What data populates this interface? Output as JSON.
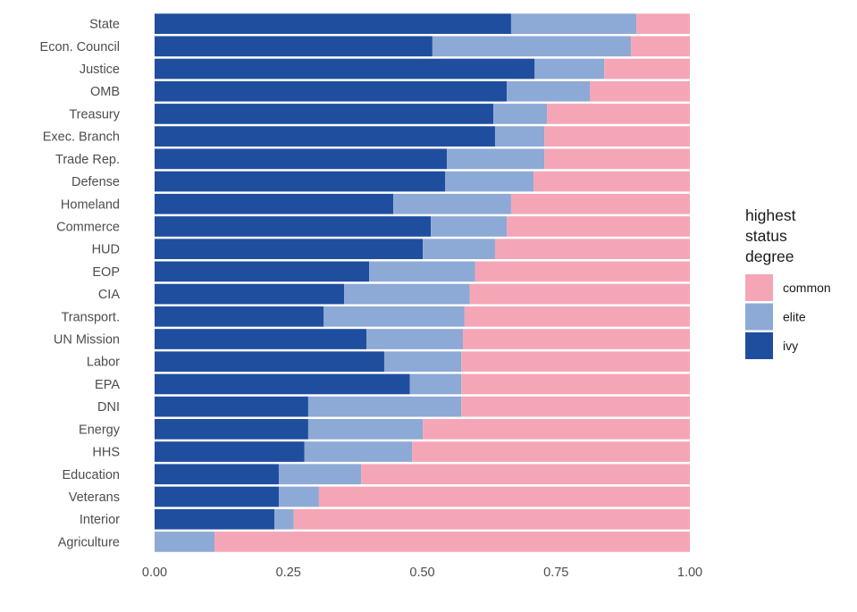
{
  "chart_data": {
    "type": "bar",
    "orientation": "horizontal",
    "stacked": true,
    "normalized": true,
    "title": "",
    "xlabel": "",
    "ylabel": "",
    "xlim": [
      0,
      1
    ],
    "xticks": [
      "0.00",
      "0.25",
      "0.50",
      "0.75",
      "1.00"
    ],
    "xtick_values": [
      0,
      0.25,
      0.5,
      0.75,
      1.0
    ],
    "grid": false,
    "legend": {
      "title": [
        "highest",
        "status",
        "degree"
      ],
      "position": "right",
      "entries": [
        {
          "name": "common",
          "color": "#F4A6B7"
        },
        {
          "name": "elite",
          "color": "#8DA9D6"
        },
        {
          "name": "ivy",
          "color": "#1F4E9E"
        }
      ]
    },
    "categories": [
      "State",
      "Econ. Council",
      "Justice",
      "OMB",
      "Treasury",
      "Exec. Branch",
      "Trade Rep.",
      "Defense",
      "Homeland",
      "Commerce",
      "HUD",
      "EOP",
      "CIA",
      "Transport.",
      "UN Mission",
      "Labor",
      "EPA",
      "DNI",
      "Energy",
      "HHS",
      "Education",
      "Veterans",
      "Interior",
      "Agriculture"
    ],
    "series": [
      {
        "name": "ivy",
        "color": "#1F4E9E",
        "values": [
          0.666,
          0.519,
          0.71,
          0.658,
          0.633,
          0.636,
          0.546,
          0.543,
          0.446,
          0.516,
          0.501,
          0.401,
          0.354,
          0.316,
          0.396,
          0.429,
          0.477,
          0.287,
          0.287,
          0.28,
          0.232,
          0.232,
          0.224,
          0.0
        ]
      },
      {
        "name": "elite",
        "color": "#8DA9D6",
        "values": [
          0.234,
          0.371,
          0.13,
          0.155,
          0.1,
          0.092,
          0.182,
          0.165,
          0.22,
          0.142,
          0.135,
          0.198,
          0.235,
          0.263,
          0.18,
          0.144,
          0.096,
          0.286,
          0.214,
          0.201,
          0.154,
          0.075,
          0.036,
          0.112
        ]
      },
      {
        "name": "common",
        "color": "#F4A6B7",
        "values": [
          0.1,
          0.11,
          0.16,
          0.187,
          0.267,
          0.272,
          0.272,
          0.292,
          0.334,
          0.342,
          0.364,
          0.401,
          0.411,
          0.421,
          0.424,
          0.427,
          0.427,
          0.427,
          0.499,
          0.519,
          0.614,
          0.693,
          0.74,
          0.888
        ]
      }
    ]
  }
}
